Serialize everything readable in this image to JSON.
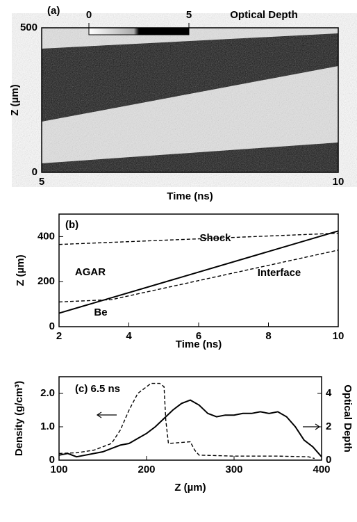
{
  "chart_data": [
    {
      "type": "image",
      "title": "(a)",
      "xlabel": "Time (ns)",
      "ylabel": "Z (µm)",
      "xlim": [
        5,
        10
      ],
      "xticks": [
        5,
        10
      ],
      "ylim": [
        0,
        500
      ],
      "yticks": [
        0,
        500
      ],
      "colorbar": {
        "label": "Optical Depth",
        "lim": [
          0,
          5
        ],
        "ticks": [
          0,
          5
        ]
      }
    },
    {
      "type": "line",
      "title": "(b)",
      "xlabel": "Time (ns)",
      "ylabel": "Z (µm)",
      "xlim": [
        2,
        10
      ],
      "xticks": [
        2,
        4,
        6,
        8,
        10
      ],
      "ylim": [
        0,
        500
      ],
      "yticks": [
        0,
        200,
        400
      ],
      "annotations": [
        "AGAR",
        "Be"
      ],
      "series": [
        {
          "name": "Shock",
          "color": "#000000",
          "dashed": false,
          "x": [
            2,
            10
          ],
          "values": [
            60,
            425
          ]
        },
        {
          "name": "Interface",
          "color": "#000000",
          "dashed": true,
          "x": [
            2,
            3.5,
            10
          ],
          "values": [
            110,
            120,
            340
          ]
        },
        {
          "color": "#000000",
          "dashed": true,
          "x": [
            2,
            10
          ],
          "values": [
            365,
            415
          ]
        }
      ]
    },
    {
      "type": "line",
      "title": "(c) 6.5 ns",
      "xlabel": "Z (µm)",
      "ylabel": "Density (g/cm³)",
      "y2label": "Optical Depth",
      "xlim": [
        100,
        400
      ],
      "xticks": [
        100,
        200,
        300,
        400
      ],
      "ylim": [
        0,
        2.5
      ],
      "yticks": [
        0,
        {
          "value": 1,
          "label": "1.0"
        },
        {
          "value": 2,
          "label": "2.0"
        }
      ],
      "y2lim": [
        0,
        5
      ],
      "y2ticks": [
        0,
        2,
        4
      ],
      "series": [
        {
          "color": "#000000",
          "dashed": true,
          "x": [
            100,
            120,
            140,
            160,
            170,
            180,
            190,
            200,
            205,
            210,
            215,
            220,
            222,
            225,
            250,
            255,
            260,
            300,
            350,
            385,
            392
          ],
          "values": [
            0.2,
            0.22,
            0.3,
            0.5,
            0.9,
            1.5,
            2.0,
            2.2,
            2.3,
            2.3,
            2.3,
            2.2,
            1.2,
            0.5,
            0.55,
            0.3,
            0.15,
            0.12,
            0.12,
            0.1,
            0.05
          ]
        },
        {
          "color": "#000000",
          "dashed": false,
          "axis": "y2",
          "x": [
            100,
            110,
            120,
            130,
            140,
            150,
            160,
            170,
            180,
            190,
            200,
            210,
            220,
            230,
            240,
            250,
            260,
            270,
            280,
            290,
            300,
            310,
            320,
            330,
            340,
            350,
            360,
            370,
            380,
            390,
            400
          ],
          "values": [
            0.3,
            0.4,
            0.2,
            0.3,
            0.4,
            0.5,
            0.7,
            0.9,
            1.0,
            1.3,
            1.6,
            2.0,
            2.5,
            3.0,
            3.4,
            3.6,
            3.3,
            2.8,
            2.6,
            2.7,
            2.7,
            2.8,
            2.8,
            2.9,
            2.8,
            2.9,
            2.6,
            2.0,
            1.2,
            0.8,
            0.2
          ]
        }
      ]
    }
  ]
}
